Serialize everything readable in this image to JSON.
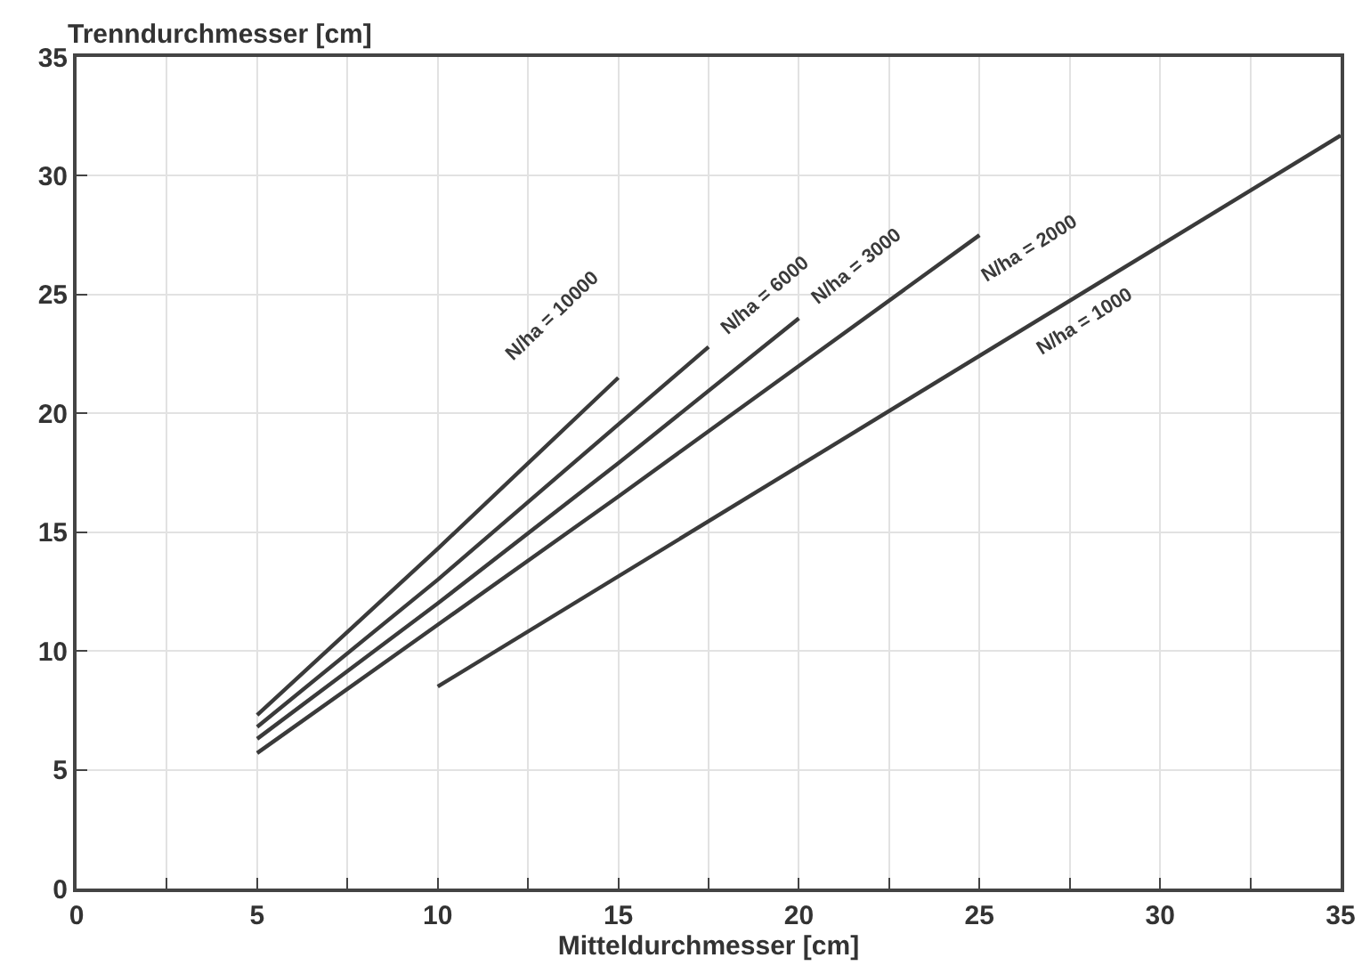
{
  "chart_data": {
    "type": "line",
    "xlabel": "Mitteldurchmesser [cm]",
    "ylabel": "Trenndurchmesser [cm]",
    "xlim": [
      0,
      35
    ],
    "ylim": [
      0,
      35
    ],
    "xticks": [
      0,
      {
        "value": 2.5,
        "label": null
      },
      5,
      {
        "value": 7.5,
        "label": null
      },
      10,
      {
        "value": 12.5,
        "label": null
      },
      15,
      {
        "value": 17.5,
        "label": null
      },
      20,
      {
        "value": 22.5,
        "label": null
      },
      25,
      {
        "value": 27.5,
        "label": null
      },
      30,
      {
        "value": 32.5,
        "label": null
      },
      35
    ],
    "yticks": [
      0,
      5,
      10,
      15,
      20,
      25,
      30,
      35
    ],
    "grid": true,
    "legend": false,
    "marker": "none",
    "line_style": "solid",
    "series": [
      {
        "name": "N/ha = 10000",
        "color": "#3a3a3a",
        "x": [
          5,
          10,
          15
        ],
        "values": [
          7.3,
          14.3,
          21.5
        ]
      },
      {
        "name": "N/ha = 6000",
        "color": "#3a3a3a",
        "x": [
          5,
          10,
          17.5
        ],
        "values": [
          6.8,
          13.0,
          22.8
        ]
      },
      {
        "name": "N/ha = 3000",
        "color": "#3a3a3a",
        "x": [
          5,
          10,
          15,
          20
        ],
        "values": [
          6.3,
          12.0,
          17.9,
          24.0
        ]
      },
      {
        "name": "N/ha = 2000",
        "color": "#3a3a3a",
        "x": [
          5,
          10,
          15,
          20,
          25
        ],
        "values": [
          5.7,
          11.1,
          16.5,
          22.0,
          27.5
        ]
      },
      {
        "name": "N/ha = 1000",
        "color": "#3a3a3a",
        "x": [
          10,
          35
        ],
        "values": [
          8.5,
          31.7
        ]
      }
    ]
  }
}
